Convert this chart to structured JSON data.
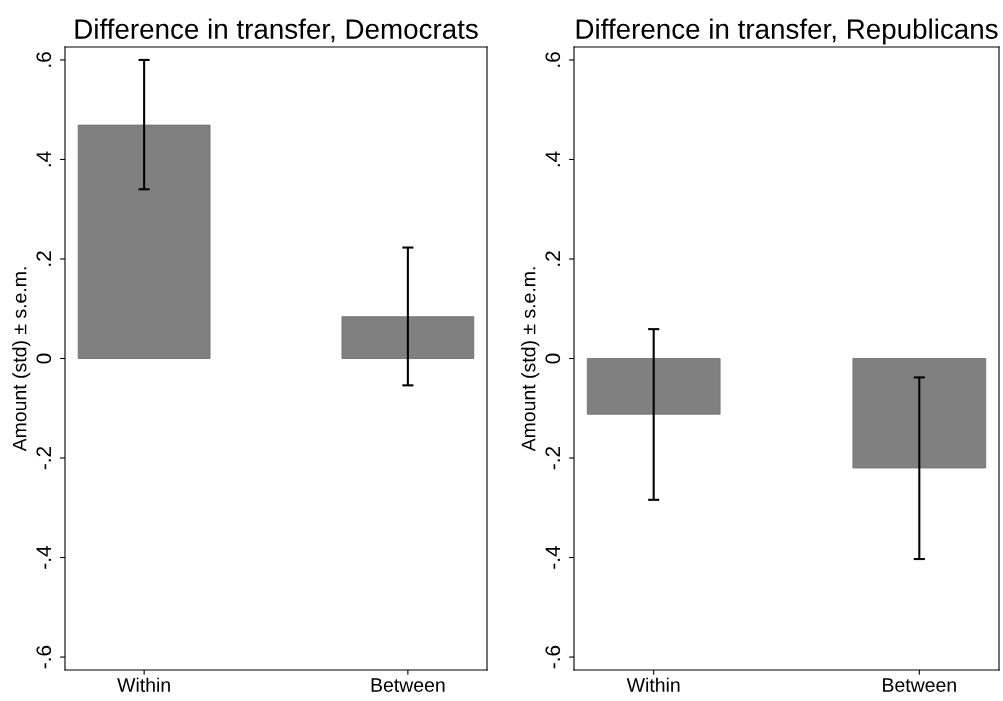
{
  "chart_data": [
    {
      "type": "bar",
      "title": "Difference in transfer, Democrats",
      "ylabel": "Amount (std) ± s.e.m.",
      "categories": [
        "Within",
        "Between"
      ],
      "values": [
        0.469,
        0.084
      ],
      "errors": [
        [
          0.34,
          0.6
        ],
        [
          -0.054,
          0.223
        ]
      ],
      "color": "#808080",
      "ylim": [
        -0.626,
        0.626
      ],
      "yticks": [
        {
          "value": -0.6,
          "label": "-.6"
        },
        {
          "value": -0.4,
          "label": "-.4"
        },
        {
          "value": -0.2,
          "label": "-.2"
        },
        0,
        {
          "value": 0.2,
          "label": ".2"
        },
        {
          "value": 0.4,
          "label": ".4"
        },
        {
          "value": 0.6,
          "label": ".6"
        }
      ],
      "grid": false
    },
    {
      "type": "bar",
      "title": "Difference in transfer, Republicans",
      "ylabel": "Amount (std) ± s.e.m.",
      "categories": [
        "Within",
        "Between"
      ],
      "values": [
        -0.112,
        -0.22
      ],
      "errors": [
        [
          -0.284,
          0.059
        ],
        [
          -0.403,
          -0.038
        ]
      ],
      "color": "#808080",
      "ylim": [
        -0.626,
        0.626
      ],
      "yticks": [
        {
          "value": -0.6,
          "label": "-.6"
        },
        {
          "value": -0.4,
          "label": "-.4"
        },
        {
          "value": -0.2,
          "label": "-.2"
        },
        0,
        {
          "value": 0.2,
          "label": ".2"
        },
        {
          "value": 0.4,
          "label": ".4"
        },
        {
          "value": 0.6,
          "label": ".6"
        }
      ],
      "grid": false
    }
  ]
}
